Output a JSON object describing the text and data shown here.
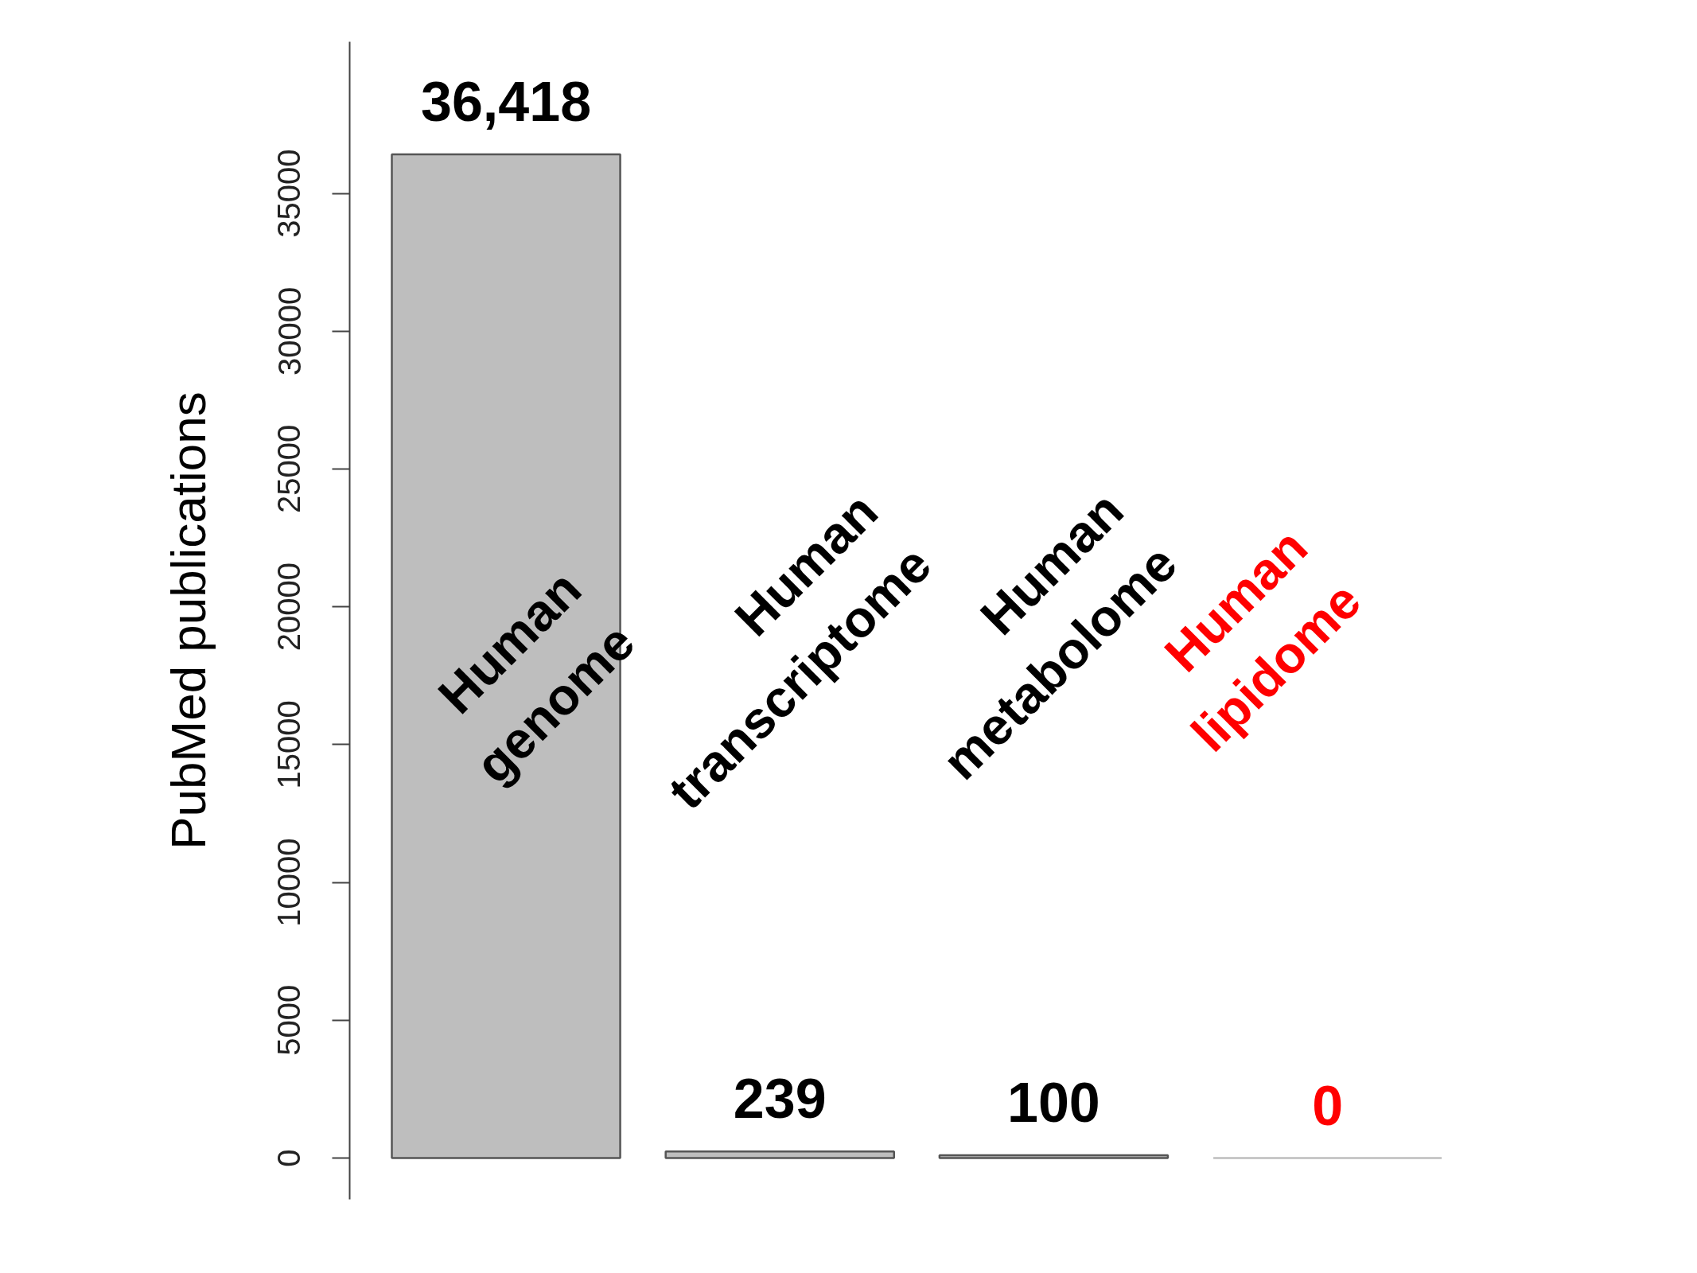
{
  "chart_data": {
    "type": "bar",
    "categories": [
      "Human\ngenome",
      "Human\ntranscriptome",
      "Human\nmetabolome",
      "Human\nlipidome"
    ],
    "values": [
      36418,
      239,
      100,
      0
    ],
    "color": "#bebebe",
    "value_labels": [
      "36,418",
      "239",
      "100",
      "0"
    ],
    "ylabel": "PubMed publications",
    "ylim": [
      -1500,
      40500
    ],
    "yticks": [
      0,
      5000,
      10000,
      15000,
      20000,
      25000,
      30000,
      35000
    ],
    "grid": false
  }
}
